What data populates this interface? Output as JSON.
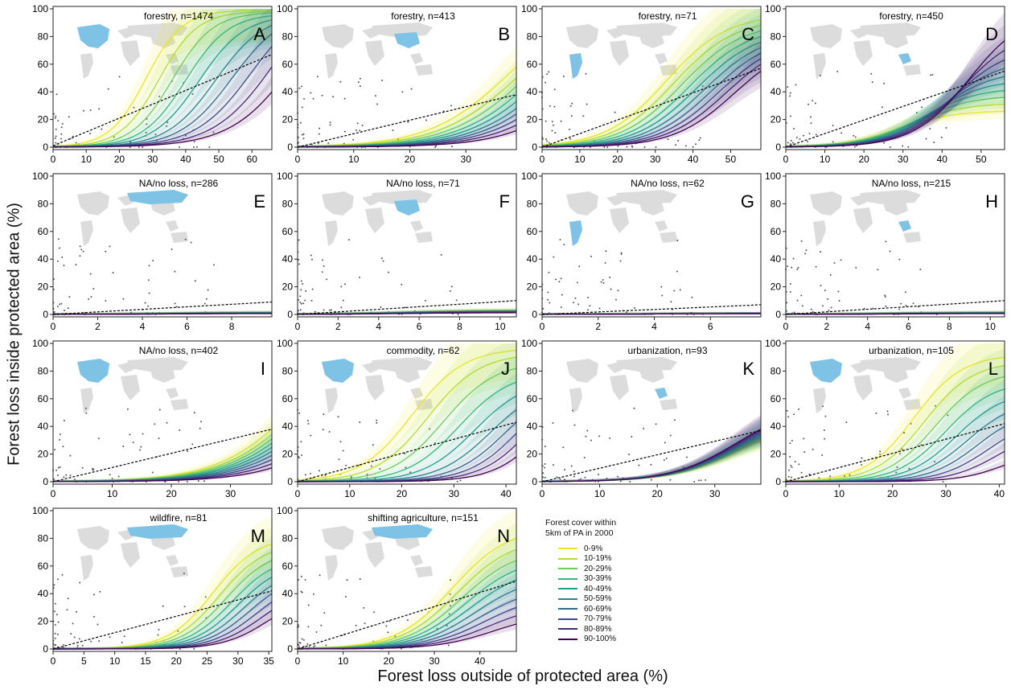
{
  "figure": {
    "xlabel": "Forest loss outside of protected area (%)",
    "ylabel": "Forest loss inside protected area (%)"
  },
  "legend": {
    "title_line1": "Forest cover within",
    "title_line2": "5km of PA in 2000",
    "items": [
      {
        "label": "0-9%",
        "color": "#f0e51f"
      },
      {
        "label": "10-19%",
        "color": "#b5dd2b"
      },
      {
        "label": "20-29%",
        "color": "#6fcc5a"
      },
      {
        "label": "30-39%",
        "color": "#35b779"
      },
      {
        "label": "40-49%",
        "color": "#1f9e89"
      },
      {
        "label": "50-59%",
        "color": "#26828e"
      },
      {
        "label": "60-69%",
        "color": "#31688e"
      },
      {
        "label": "70-79%",
        "color": "#3e4989"
      },
      {
        "label": "80-89%",
        "color": "#482878"
      },
      {
        "label": "90-100%",
        "color": "#440154"
      }
    ]
  },
  "chart_data": [
    {
      "letter": "A",
      "type": "line",
      "subtitle": "forestry, n=1474",
      "xlim": [
        0,
        66
      ],
      "ylim": [
        0,
        100
      ],
      "xticks": [
        0,
        10,
        20,
        30,
        40,
        50,
        60
      ],
      "yticks": [
        0,
        20,
        40,
        60,
        80,
        100
      ],
      "map_region": "north-america",
      "trend": {
        "type": "dashed",
        "x": [
          0,
          66
        ],
        "y": [
          1,
          67
        ]
      },
      "curves_end": [
        99,
        98,
        97,
        95,
        92,
        88,
        82,
        73,
        58,
        40
      ],
      "curves_mid": [
        28,
        32,
        36,
        40,
        44,
        49,
        54,
        60,
        67,
        75
      ],
      "curves_k": [
        0.2,
        0.19,
        0.18,
        0.17,
        0.16,
        0.15,
        0.14,
        0.13,
        0.12,
        0.11
      ]
    },
    {
      "letter": "B",
      "type": "line",
      "subtitle": "forestry, n=413",
      "xlim": [
        0,
        39
      ],
      "ylim": [
        0,
        100
      ],
      "xticks": [
        0,
        10,
        20,
        30
      ],
      "yticks": [
        0,
        20,
        40,
        60,
        80,
        100
      ],
      "map_region": "east-asia",
      "trend": {
        "type": "dashed",
        "x": [
          0,
          39
        ],
        "y": [
          0,
          38
        ]
      },
      "curves_end": [
        58,
        50,
        44,
        38,
        33,
        28,
        24,
        20,
        16,
        12
      ],
      "curves_mid": [
        38,
        40,
        42,
        44,
        46,
        48,
        50,
        52,
        54,
        56
      ],
      "curves_k": [
        0.09,
        0.09,
        0.09,
        0.09,
        0.09,
        0.09,
        0.09,
        0.09,
        0.09,
        0.09
      ]
    },
    {
      "letter": "C",
      "type": "line",
      "subtitle": "forestry, n=71",
      "xlim": [
        0,
        58
      ],
      "ylim": [
        0,
        100
      ],
      "xticks": [
        0,
        10,
        20,
        30,
        40,
        50
      ],
      "yticks": [
        0,
        20,
        40,
        60,
        80,
        100
      ],
      "map_region": "south-america",
      "trend": {
        "type": "dashed",
        "x": [
          0,
          58
        ],
        "y": [
          0,
          57
        ]
      },
      "curves_end": [
        92,
        88,
        84,
        80,
        76,
        72,
        68,
        64,
        60,
        55
      ],
      "curves_mid": [
        33,
        35,
        37,
        39,
        41,
        43,
        45,
        47,
        49,
        51
      ],
      "curves_k": [
        0.12,
        0.12,
        0.12,
        0.12,
        0.12,
        0.12,
        0.12,
        0.12,
        0.12,
        0.12
      ]
    },
    {
      "letter": "D",
      "type": "line",
      "subtitle": "forestry, n=450",
      "xlim": [
        0,
        56
      ],
      "ylim": [
        0,
        100
      ],
      "xticks": [
        0,
        10,
        20,
        30,
        40,
        50
      ],
      "yticks": [
        0,
        20,
        40,
        60,
        80,
        100
      ],
      "map_region": "southeast-asia",
      "trend": {
        "type": "dashed",
        "x": [
          0,
          56
        ],
        "y": [
          0,
          55
        ]
      },
      "curves_end": [
        26,
        31,
        36,
        41,
        46,
        51,
        57,
        63,
        70,
        77
      ],
      "curves_mid": [
        29,
        31,
        33,
        35,
        37,
        39,
        41,
        43,
        45,
        47
      ],
      "curves_k": [
        0.13,
        0.13,
        0.13,
        0.13,
        0.13,
        0.13,
        0.13,
        0.13,
        0.13,
        0.13
      ]
    },
    {
      "letter": "E",
      "type": "line",
      "subtitle": "NA/no loss, n=286",
      "xlim": [
        0,
        9.8
      ],
      "ylim": [
        0,
        100
      ],
      "xticks": [
        0,
        2,
        4,
        6,
        8
      ],
      "yticks": [
        0,
        20,
        40,
        60,
        80,
        100
      ],
      "map_region": "russia",
      "trend": {
        "type": "dashed",
        "x": [
          0,
          9.8
        ],
        "y": [
          0,
          9
        ]
      },
      "curves_end": [
        1.5,
        1.4,
        1.3,
        1.2,
        1.1,
        1,
        0.9,
        0.8,
        0.7,
        0.6
      ],
      "curves_mid": [
        5,
        5,
        5,
        5,
        5,
        5,
        5,
        5,
        5,
        5
      ],
      "curves_k": [
        0.1,
        0.1,
        0.1,
        0.1,
        0.1,
        0.1,
        0.1,
        0.1,
        0.1,
        0.1
      ]
    },
    {
      "letter": "F",
      "type": "line",
      "subtitle": "NA/no loss, n=71",
      "xlim": [
        0,
        10.8
      ],
      "ylim": [
        0,
        100
      ],
      "xticks": [
        0,
        2,
        4,
        6,
        8,
        10
      ],
      "yticks": [
        0,
        20,
        40,
        60,
        80,
        100
      ],
      "map_region": "east-asia",
      "trend": {
        "type": "dashed",
        "x": [
          0,
          10.8
        ],
        "y": [
          0,
          10
        ]
      },
      "curves_end": [
        3,
        2.8,
        2.6,
        2.4,
        2.2,
        2,
        1.8,
        1.6,
        1.4,
        1.2
      ],
      "curves_mid": [
        5,
        5,
        5,
        5,
        5,
        5,
        5,
        5,
        5,
        5
      ],
      "curves_k": [
        0.1,
        0.1,
        0.1,
        0.1,
        0.1,
        0.1,
        0.1,
        0.1,
        0.1,
        0.1
      ]
    },
    {
      "letter": "G",
      "type": "line",
      "subtitle": "NA/no loss, n=62",
      "xlim": [
        0,
        7.8
      ],
      "ylim": [
        0,
        100
      ],
      "xticks": [
        0,
        2,
        4,
        6
      ],
      "yticks": [
        0,
        20,
        40,
        60,
        80,
        100
      ],
      "map_region": "south-america",
      "trend": {
        "type": "dashed",
        "x": [
          0,
          7.8
        ],
        "y": [
          0,
          7
        ]
      },
      "curves_end": [
        0.6,
        0.6,
        0.6,
        0.6,
        0.6,
        0.6,
        0.6,
        0.6,
        0.6,
        0.6
      ],
      "curves_mid": [
        4,
        4,
        4,
        4,
        4,
        4,
        4,
        4,
        4,
        4
      ],
      "curves_k": [
        0.1,
        0.1,
        0.1,
        0.1,
        0.1,
        0.1,
        0.1,
        0.1,
        0.1,
        0.1
      ]
    },
    {
      "letter": "H",
      "type": "line",
      "subtitle": "NA/no loss, n=215",
      "xlim": [
        0,
        10.7
      ],
      "ylim": [
        0,
        100
      ],
      "xticks": [
        0,
        2,
        4,
        6,
        8,
        10
      ],
      "yticks": [
        0,
        20,
        40,
        60,
        80,
        100
      ],
      "map_region": "southeast-asia",
      "trend": {
        "type": "dashed",
        "x": [
          0,
          10.7
        ],
        "y": [
          0,
          10
        ]
      },
      "curves_end": [
        1.5,
        1.4,
        1.3,
        1.2,
        1.1,
        1,
        0.9,
        0.8,
        0.7,
        0.6
      ],
      "curves_mid": [
        5,
        5,
        5,
        5,
        5,
        5,
        5,
        5,
        5,
        5
      ],
      "curves_k": [
        0.1,
        0.1,
        0.1,
        0.1,
        0.1,
        0.1,
        0.1,
        0.1,
        0.1,
        0.1
      ]
    },
    {
      "letter": "I",
      "type": "line",
      "subtitle": "NA/no loss, n=402",
      "xlim": [
        0,
        37
      ],
      "ylim": [
        0,
        100
      ],
      "xticks": [
        0,
        10,
        20,
        30
      ],
      "yticks": [
        0,
        20,
        40,
        60,
        80,
        100
      ],
      "map_region": "north-america",
      "trend": {
        "type": "dashed",
        "x": [
          0,
          37
        ],
        "y": [
          0,
          38
        ]
      },
      "curves_end": [
        38,
        34,
        31,
        28,
        25,
        22,
        19,
        16,
        13,
        10
      ],
      "curves_mid": [
        42,
        43,
        44,
        45,
        46,
        47,
        48,
        49,
        50,
        51
      ],
      "curves_k": [
        0.09,
        0.09,
        0.09,
        0.09,
        0.09,
        0.09,
        0.09,
        0.09,
        0.09,
        0.09
      ]
    },
    {
      "letter": "J",
      "type": "line",
      "subtitle": "commodity, n=62",
      "xlim": [
        0,
        42
      ],
      "ylim": [
        0,
        100
      ],
      "xticks": [
        0,
        10,
        20,
        30,
        40
      ],
      "yticks": [
        0,
        20,
        40,
        60,
        80,
        100
      ],
      "map_region": "north-america",
      "trend": {
        "type": "dashed",
        "x": [
          0,
          42
        ],
        "y": [
          0,
          43
        ]
      },
      "curves_end": [
        95,
        90,
        82,
        72,
        62,
        52,
        43,
        35,
        27,
        18
      ],
      "curves_mid": [
        22,
        25,
        28,
        31,
        34,
        37,
        40,
        43,
        46,
        49
      ],
      "curves_k": [
        0.14,
        0.14,
        0.14,
        0.14,
        0.14,
        0.14,
        0.14,
        0.14,
        0.14,
        0.14
      ]
    },
    {
      "letter": "K",
      "type": "line",
      "subtitle": "urbanization, n=93",
      "xlim": [
        0,
        38
      ],
      "ylim": [
        0,
        100
      ],
      "xticks": [
        0,
        10,
        20,
        30
      ],
      "yticks": [
        0,
        20,
        40,
        60,
        80,
        100
      ],
      "map_region": "southeast-asia",
      "trend": {
        "type": "dashed",
        "x": [
          0,
          38
        ],
        "y": [
          0,
          37
        ]
      },
      "curves_end": [
        29,
        30,
        31,
        32,
        33,
        34,
        35,
        36,
        37,
        38
      ],
      "curves_mid": [
        34,
        34,
        34,
        34,
        34,
        34,
        34,
        34,
        34,
        34
      ],
      "curves_k": [
        0.11,
        0.11,
        0.11,
        0.11,
        0.11,
        0.11,
        0.11,
        0.11,
        0.11,
        0.11
      ]
    },
    {
      "letter": "L",
      "type": "line",
      "subtitle": "urbanization, n=105",
      "xlim": [
        0,
        41
      ],
      "ylim": [
        0,
        100
      ],
      "xticks": [
        0,
        10,
        20,
        30,
        40
      ],
      "yticks": [
        0,
        20,
        40,
        60,
        80,
        100
      ],
      "map_region": "north-america",
      "trend": {
        "type": "dashed",
        "x": [
          0,
          41
        ],
        "y": [
          0,
          42
        ]
      },
      "curves_end": [
        90,
        84,
        76,
        67,
        58,
        49,
        40,
        31,
        22,
        12
      ],
      "curves_mid": [
        24,
        26,
        28,
        30,
        32,
        34,
        36,
        38,
        40,
        42
      ],
      "curves_k": [
        0.15,
        0.15,
        0.15,
        0.15,
        0.15,
        0.15,
        0.15,
        0.15,
        0.15,
        0.15
      ]
    },
    {
      "letter": "M",
      "type": "line",
      "subtitle": "wildfire, n=81",
      "xlim": [
        0,
        35.5
      ],
      "ylim": [
        0,
        100
      ],
      "xticks": [
        0,
        5,
        10,
        15,
        20,
        25,
        30,
        35
      ],
      "yticks": [
        0,
        20,
        40,
        60,
        80,
        100
      ],
      "map_region": "russia",
      "trend": {
        "type": "dashed",
        "x": [
          0,
          35.5
        ],
        "y": [
          0,
          42
        ]
      },
      "curves_end": [
        76,
        70,
        64,
        58,
        52,
        46,
        40,
        34,
        28,
        22
      ],
      "curves_mid": [
        26,
        27,
        28,
        29,
        30,
        31,
        32,
        33,
        34,
        35
      ],
      "curves_k": [
        0.16,
        0.16,
        0.16,
        0.16,
        0.16,
        0.16,
        0.16,
        0.16,
        0.16,
        0.16
      ]
    },
    {
      "letter": "N",
      "type": "line",
      "subtitle": "shifting agriculture, n=151",
      "xlim": [
        0,
        48
      ],
      "ylim": [
        0,
        100
      ],
      "xticks": [
        0,
        10,
        20,
        30,
        40
      ],
      "yticks": [
        0,
        20,
        40,
        60,
        80,
        100
      ],
      "map_region": "russia",
      "trend": {
        "type": "dashed",
        "x": [
          0,
          48
        ],
        "y": [
          0,
          49
        ]
      },
      "curves_end": [
        80,
        72,
        64,
        57,
        50,
        43,
        36,
        30,
        24,
        18
      ],
      "curves_mid": [
        34,
        35,
        36,
        37,
        38,
        39,
        40,
        41,
        42,
        43
      ],
      "curves_k": [
        0.13,
        0.13,
        0.13,
        0.13,
        0.13,
        0.13,
        0.13,
        0.13,
        0.13,
        0.13
      ]
    }
  ]
}
